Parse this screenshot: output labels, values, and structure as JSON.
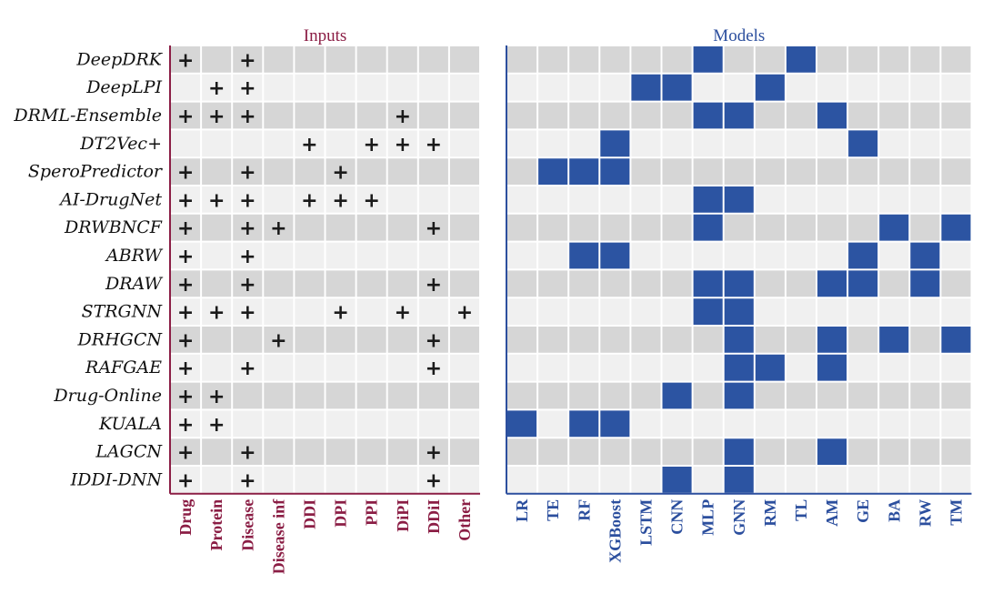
{
  "chart_data": {
    "type": "heatmap",
    "title": "",
    "rows": [
      "DeepDRK",
      "DeepLPI",
      "DRML-Ensemble",
      "DT2Vec+",
      "SperoPredictor",
      "AI-DrugNet",
      "DRWBNCF",
      "ABRW",
      "DRAW",
      "STRGNN",
      "DRHGCN",
      "RAFGAE",
      "Drug-Online",
      "KUALA",
      "LAGCN",
      "IDDI-DNN"
    ],
    "panels": [
      {
        "name": "inputs",
        "title": "Inputs",
        "title_color": "#8b1e45",
        "marker": "+",
        "columns": [
          "Drug",
          "Protein",
          "Disease",
          "Disease inf",
          "DDI",
          "DPI",
          "PPI",
          "DiPI",
          "DDiI",
          "Other"
        ],
        "cells": [
          [
            1,
            0,
            1,
            0,
            0,
            0,
            0,
            0,
            0,
            0
          ],
          [
            0,
            1,
            1,
            0,
            0,
            0,
            0,
            0,
            0,
            0
          ],
          [
            1,
            1,
            1,
            0,
            0,
            0,
            0,
            1,
            0,
            0
          ],
          [
            0,
            0,
            0,
            0,
            1,
            0,
            1,
            1,
            1,
            0
          ],
          [
            1,
            0,
            1,
            0,
            0,
            1,
            0,
            0,
            0,
            0
          ],
          [
            1,
            1,
            1,
            0,
            1,
            1,
            1,
            0,
            0,
            0
          ],
          [
            1,
            0,
            1,
            1,
            0,
            0,
            0,
            0,
            1,
            0
          ],
          [
            1,
            0,
            1,
            0,
            0,
            0,
            0,
            0,
            0,
            0
          ],
          [
            1,
            0,
            1,
            0,
            0,
            0,
            0,
            0,
            1,
            0
          ],
          [
            1,
            1,
            1,
            0,
            0,
            1,
            0,
            1,
            0,
            1
          ],
          [
            1,
            0,
            0,
            1,
            0,
            0,
            0,
            0,
            1,
            0
          ],
          [
            1,
            0,
            1,
            0,
            0,
            0,
            0,
            0,
            1,
            0
          ],
          [
            1,
            1,
            0,
            0,
            0,
            0,
            0,
            0,
            0,
            0
          ],
          [
            1,
            1,
            0,
            0,
            0,
            0,
            0,
            0,
            0,
            0
          ],
          [
            1,
            0,
            1,
            0,
            0,
            0,
            0,
            0,
            1,
            0
          ],
          [
            1,
            0,
            1,
            0,
            0,
            0,
            0,
            0,
            1,
            0
          ]
        ]
      },
      {
        "name": "models",
        "title": "Models",
        "title_color": "#2c4f9e",
        "marker": "filled",
        "columns": [
          "LR",
          "TE",
          "RF",
          "XGBoost",
          "LSTM",
          "CNN",
          "MLP",
          "GNN",
          "RM",
          "TL",
          "AM",
          "GE",
          "BA",
          "RW",
          "TM"
        ],
        "cells": [
          [
            0,
            0,
            0,
            0,
            0,
            0,
            1,
            0,
            0,
            1,
            0,
            0,
            0,
            0,
            0
          ],
          [
            0,
            0,
            0,
            0,
            1,
            1,
            0,
            0,
            1,
            0,
            0,
            0,
            0,
            0,
            0
          ],
          [
            0,
            0,
            0,
            0,
            0,
            0,
            1,
            1,
            0,
            0,
            1,
            0,
            0,
            0,
            0
          ],
          [
            0,
            0,
            0,
            1,
            0,
            0,
            0,
            0,
            0,
            0,
            0,
            1,
            0,
            0,
            0
          ],
          [
            0,
            1,
            1,
            1,
            0,
            0,
            0,
            0,
            0,
            0,
            0,
            0,
            0,
            0,
            0
          ],
          [
            0,
            0,
            0,
            0,
            0,
            0,
            1,
            1,
            0,
            0,
            0,
            0,
            0,
            0,
            0
          ],
          [
            0,
            0,
            0,
            0,
            0,
            0,
            1,
            0,
            0,
            0,
            0,
            0,
            1,
            0,
            1
          ],
          [
            0,
            0,
            1,
            1,
            0,
            0,
            0,
            0,
            0,
            0,
            0,
            1,
            0,
            1,
            0
          ],
          [
            0,
            0,
            0,
            0,
            0,
            0,
            1,
            1,
            0,
            0,
            1,
            1,
            0,
            1,
            0
          ],
          [
            0,
            0,
            0,
            0,
            0,
            0,
            1,
            1,
            0,
            0,
            0,
            0,
            0,
            0,
            0
          ],
          [
            0,
            0,
            0,
            0,
            0,
            0,
            0,
            1,
            0,
            0,
            1,
            0,
            1,
            0,
            1
          ],
          [
            0,
            0,
            0,
            0,
            0,
            0,
            0,
            1,
            1,
            0,
            1,
            0,
            0,
            0,
            0
          ],
          [
            0,
            0,
            0,
            0,
            0,
            1,
            0,
            1,
            0,
            0,
            0,
            0,
            0,
            0,
            0
          ],
          [
            1,
            0,
            1,
            1,
            0,
            0,
            0,
            0,
            0,
            0,
            0,
            0,
            0,
            0,
            0
          ],
          [
            0,
            0,
            0,
            0,
            0,
            0,
            0,
            1,
            0,
            0,
            1,
            0,
            0,
            0,
            0
          ],
          [
            0,
            0,
            0,
            0,
            0,
            1,
            0,
            1,
            0,
            0,
            0,
            0,
            0,
            0,
            0
          ]
        ]
      }
    ]
  },
  "colors": {
    "row_dark": "#d6d6d6",
    "row_light": "#f0f0f0",
    "filled": "#2c54a2",
    "grid": "#ffffff",
    "inputs_accent": "#8b1e45",
    "models_accent": "#2c4f9e"
  }
}
